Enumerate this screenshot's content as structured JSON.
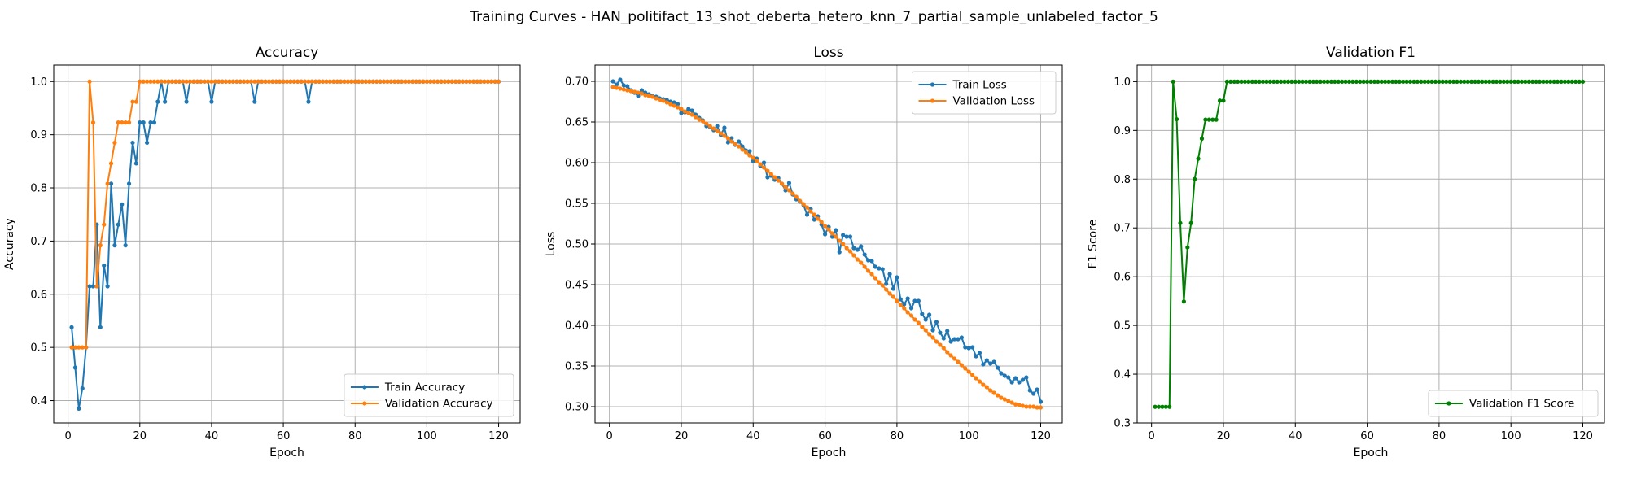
{
  "figure": {
    "suptitle": "Training Curves - HAN_politifact_13_shot_deberta_hetero_knn_7_partial_sample_unlabeled_factor_5"
  },
  "colors": {
    "train": "#1f77b4",
    "validation": "#ff7f0e",
    "f1": "#008000",
    "grid": "#b0b0b0"
  },
  "chart_data": [
    {
      "type": "line",
      "title": "Accuracy",
      "xlabel": "Epoch",
      "ylabel": "Accuracy",
      "xlim": [
        -4,
        126
      ],
      "ylim": [
        0.358,
        1.031
      ],
      "xticks": [
        0,
        20,
        40,
        60,
        80,
        100,
        120
      ],
      "yticks": [
        0.4,
        0.5,
        0.6,
        0.7,
        0.8,
        0.9,
        1.0
      ],
      "ytick_labels": [
        "0.4",
        "0.5",
        "0.6",
        "0.7",
        "0.8",
        "0.9",
        "1.0"
      ],
      "grid": true,
      "legend_position": "lower-right",
      "series": [
        {
          "name": "Train Accuracy",
          "color": "#1f77b4",
          "x_start": 1,
          "y": [
            0.538,
            0.462,
            0.385,
            0.423,
            0.5,
            0.615,
            0.615,
            0.731,
            0.538,
            0.654,
            0.615,
            0.808,
            0.692,
            0.731,
            0.769,
            0.692,
            0.808,
            0.885,
            0.846,
            0.923,
            0.923,
            0.885,
            0.923,
            0.923,
            0.962,
            1.0,
            0.962,
            1.0,
            1.0,
            1.0,
            1.0,
            1.0,
            0.962,
            1.0,
            1.0,
            1.0,
            1.0,
            1.0,
            1.0,
            0.962,
            1.0,
            1.0,
            1.0,
            1.0,
            1.0,
            1.0,
            1.0,
            1.0,
            1.0,
            1.0,
            1.0,
            0.962,
            1.0,
            1.0,
            1.0,
            1.0,
            1.0,
            1.0,
            1.0,
            1.0,
            1.0,
            1.0,
            1.0,
            1.0,
            1.0,
            1.0,
            0.962,
            1.0,
            1.0,
            1.0,
            1.0,
            1.0,
            1.0,
            1.0,
            1.0,
            1.0,
            1.0,
            1.0,
            1.0,
            1.0,
            1.0,
            1.0,
            1.0,
            1.0,
            1.0,
            1.0,
            1.0,
            1.0,
            1.0,
            1.0,
            1.0,
            1.0,
            1.0,
            1.0,
            1.0,
            1.0,
            1.0,
            1.0,
            1.0,
            1.0,
            1.0,
            1.0,
            1.0,
            1.0,
            1.0,
            1.0,
            1.0,
            1.0,
            1.0,
            1.0,
            1.0,
            1.0,
            1.0,
            1.0,
            1.0,
            1.0,
            1.0,
            1.0,
            1.0,
            1.0
          ]
        },
        {
          "name": "Validation Accuracy",
          "color": "#ff7f0e",
          "x_start": 1,
          "y": [
            0.5,
            0.5,
            0.5,
            0.5,
            0.5,
            1.0,
            0.923,
            0.615,
            0.692,
            0.731,
            0.808,
            0.846,
            0.885,
            0.923,
            0.923,
            0.923,
            0.923,
            0.962,
            0.962,
            1.0,
            1.0,
            1.0,
            1.0,
            1.0,
            1.0,
            1.0,
            1.0,
            1.0,
            1.0,
            1.0,
            1.0,
            1.0,
            1.0,
            1.0,
            1.0,
            1.0,
            1.0,
            1.0,
            1.0,
            1.0,
            1.0,
            1.0,
            1.0,
            1.0,
            1.0,
            1.0,
            1.0,
            1.0,
            1.0,
            1.0,
            1.0,
            1.0,
            1.0,
            1.0,
            1.0,
            1.0,
            1.0,
            1.0,
            1.0,
            1.0,
            1.0,
            1.0,
            1.0,
            1.0,
            1.0,
            1.0,
            1.0,
            1.0,
            1.0,
            1.0,
            1.0,
            1.0,
            1.0,
            1.0,
            1.0,
            1.0,
            1.0,
            1.0,
            1.0,
            1.0,
            1.0,
            1.0,
            1.0,
            1.0,
            1.0,
            1.0,
            1.0,
            1.0,
            1.0,
            1.0,
            1.0,
            1.0,
            1.0,
            1.0,
            1.0,
            1.0,
            1.0,
            1.0,
            1.0,
            1.0,
            1.0,
            1.0,
            1.0,
            1.0,
            1.0,
            1.0,
            1.0,
            1.0,
            1.0,
            1.0,
            1.0,
            1.0,
            1.0,
            1.0,
            1.0,
            1.0,
            1.0,
            1.0,
            1.0,
            1.0
          ]
        }
      ]
    },
    {
      "type": "line",
      "title": "Loss",
      "xlabel": "Epoch",
      "ylabel": "Loss",
      "xlim": [
        -4,
        126
      ],
      "ylim": [
        0.28,
        0.72
      ],
      "xticks": [
        0,
        20,
        40,
        60,
        80,
        100,
        120
      ],
      "yticks": [
        0.3,
        0.35,
        0.4,
        0.45,
        0.5,
        0.55,
        0.6,
        0.65,
        0.7
      ],
      "ytick_labels": [
        "0.30",
        "0.35",
        "0.40",
        "0.45",
        "0.50",
        "0.55",
        "0.60",
        "0.65",
        "0.70"
      ],
      "grid": true,
      "legend_position": "upper-right",
      "series": [
        {
          "name": "Train Loss",
          "color": "#1f77b4",
          "x_start": 1,
          "y": [
            0.7,
            0.696,
            0.702,
            0.695,
            0.694,
            0.689,
            0.686,
            0.682,
            0.689,
            0.686,
            0.684,
            0.682,
            0.681,
            0.679,
            0.678,
            0.677,
            0.675,
            0.674,
            0.672,
            0.661,
            0.662,
            0.666,
            0.664,
            0.659,
            0.655,
            0.652,
            0.645,
            0.644,
            0.64,
            0.645,
            0.634,
            0.643,
            0.625,
            0.63,
            0.622,
            0.626,
            0.62,
            0.615,
            0.614,
            0.602,
            0.605,
            0.596,
            0.6,
            0.582,
            0.584,
            0.579,
            0.581,
            0.574,
            0.566,
            0.575,
            0.561,
            0.555,
            0.552,
            0.548,
            0.536,
            0.543,
            0.53,
            0.534,
            0.524,
            0.512,
            0.521,
            0.509,
            0.517,
            0.49,
            0.511,
            0.509,
            0.509,
            0.495,
            0.493,
            0.497,
            0.487,
            0.48,
            0.479,
            0.472,
            0.47,
            0.469,
            0.451,
            0.463,
            0.445,
            0.459,
            0.432,
            0.426,
            0.433,
            0.421,
            0.43,
            0.43,
            0.414,
            0.407,
            0.413,
            0.394,
            0.404,
            0.391,
            0.384,
            0.393,
            0.38,
            0.383,
            0.383,
            0.385,
            0.373,
            0.372,
            0.373,
            0.362,
            0.366,
            0.352,
            0.357,
            0.353,
            0.355,
            0.348,
            0.341,
            0.338,
            0.336,
            0.33,
            0.335,
            0.33,
            0.333,
            0.336,
            0.32,
            0.316,
            0.321,
            0.306
          ]
        },
        {
          "name": "Validation Loss",
          "color": "#ff7f0e",
          "x_start": 1,
          "y": [
            0.693,
            0.692,
            0.691,
            0.69,
            0.689,
            0.688,
            0.687,
            0.686,
            0.685,
            0.683,
            0.682,
            0.681,
            0.679,
            0.677,
            0.676,
            0.674,
            0.672,
            0.67,
            0.668,
            0.666,
            0.663,
            0.661,
            0.659,
            0.656,
            0.653,
            0.651,
            0.648,
            0.645,
            0.642,
            0.639,
            0.636,
            0.633,
            0.63,
            0.626,
            0.623,
            0.62,
            0.616,
            0.613,
            0.609,
            0.606,
            0.602,
            0.598,
            0.594,
            0.59,
            0.586,
            0.582,
            0.578,
            0.574,
            0.57,
            0.566,
            0.562,
            0.558,
            0.553,
            0.549,
            0.545,
            0.54,
            0.536,
            0.531,
            0.527,
            0.522,
            0.518,
            0.513,
            0.509,
            0.504,
            0.5,
            0.495,
            0.491,
            0.486,
            0.481,
            0.477,
            0.472,
            0.467,
            0.463,
            0.458,
            0.453,
            0.449,
            0.444,
            0.439,
            0.435,
            0.43,
            0.425,
            0.421,
            0.416,
            0.412,
            0.407,
            0.403,
            0.398,
            0.394,
            0.389,
            0.385,
            0.38,
            0.376,
            0.372,
            0.367,
            0.363,
            0.359,
            0.355,
            0.351,
            0.347,
            0.343,
            0.339,
            0.335,
            0.331,
            0.327,
            0.324,
            0.32,
            0.317,
            0.314,
            0.311,
            0.309,
            0.307,
            0.305,
            0.303,
            0.302,
            0.301,
            0.3,
            0.3,
            0.3,
            0.299,
            0.299
          ]
        }
      ]
    },
    {
      "type": "line",
      "title": "Validation F1",
      "xlabel": "Epoch",
      "ylabel": "F1 Score",
      "xlim": [
        -4,
        126
      ],
      "ylim": [
        0.3,
        1.034
      ],
      "xticks": [
        0,
        20,
        40,
        60,
        80,
        100,
        120
      ],
      "yticks": [
        0.3,
        0.4,
        0.5,
        0.6,
        0.7,
        0.8,
        0.9,
        1.0
      ],
      "ytick_labels": [
        "0.3",
        "0.4",
        "0.5",
        "0.6",
        "0.7",
        "0.8",
        "0.9",
        "1.0"
      ],
      "grid": true,
      "legend_position": "lower-right",
      "series": [
        {
          "name": "Validation F1 Score",
          "color": "#008000",
          "x_start": 1,
          "y": [
            0.333,
            0.333,
            0.333,
            0.333,
            0.333,
            1.0,
            0.923,
            0.71,
            0.549,
            0.66,
            0.71,
            0.8,
            0.842,
            0.883,
            0.922,
            0.922,
            0.922,
            0.922,
            0.961,
            0.961,
            1.0,
            1.0,
            1.0,
            1.0,
            1.0,
            1.0,
            1.0,
            1.0,
            1.0,
            1.0,
            1.0,
            1.0,
            1.0,
            1.0,
            1.0,
            1.0,
            1.0,
            1.0,
            1.0,
            1.0,
            1.0,
            1.0,
            1.0,
            1.0,
            1.0,
            1.0,
            1.0,
            1.0,
            1.0,
            1.0,
            1.0,
            1.0,
            1.0,
            1.0,
            1.0,
            1.0,
            1.0,
            1.0,
            1.0,
            1.0,
            1.0,
            1.0,
            1.0,
            1.0,
            1.0,
            1.0,
            1.0,
            1.0,
            1.0,
            1.0,
            1.0,
            1.0,
            1.0,
            1.0,
            1.0,
            1.0,
            1.0,
            1.0,
            1.0,
            1.0,
            1.0,
            1.0,
            1.0,
            1.0,
            1.0,
            1.0,
            1.0,
            1.0,
            1.0,
            1.0,
            1.0,
            1.0,
            1.0,
            1.0,
            1.0,
            1.0,
            1.0,
            1.0,
            1.0,
            1.0,
            1.0,
            1.0,
            1.0,
            1.0,
            1.0,
            1.0,
            1.0,
            1.0,
            1.0,
            1.0,
            1.0,
            1.0,
            1.0,
            1.0,
            1.0,
            1.0,
            1.0,
            1.0,
            1.0,
            1.0
          ]
        }
      ]
    }
  ]
}
